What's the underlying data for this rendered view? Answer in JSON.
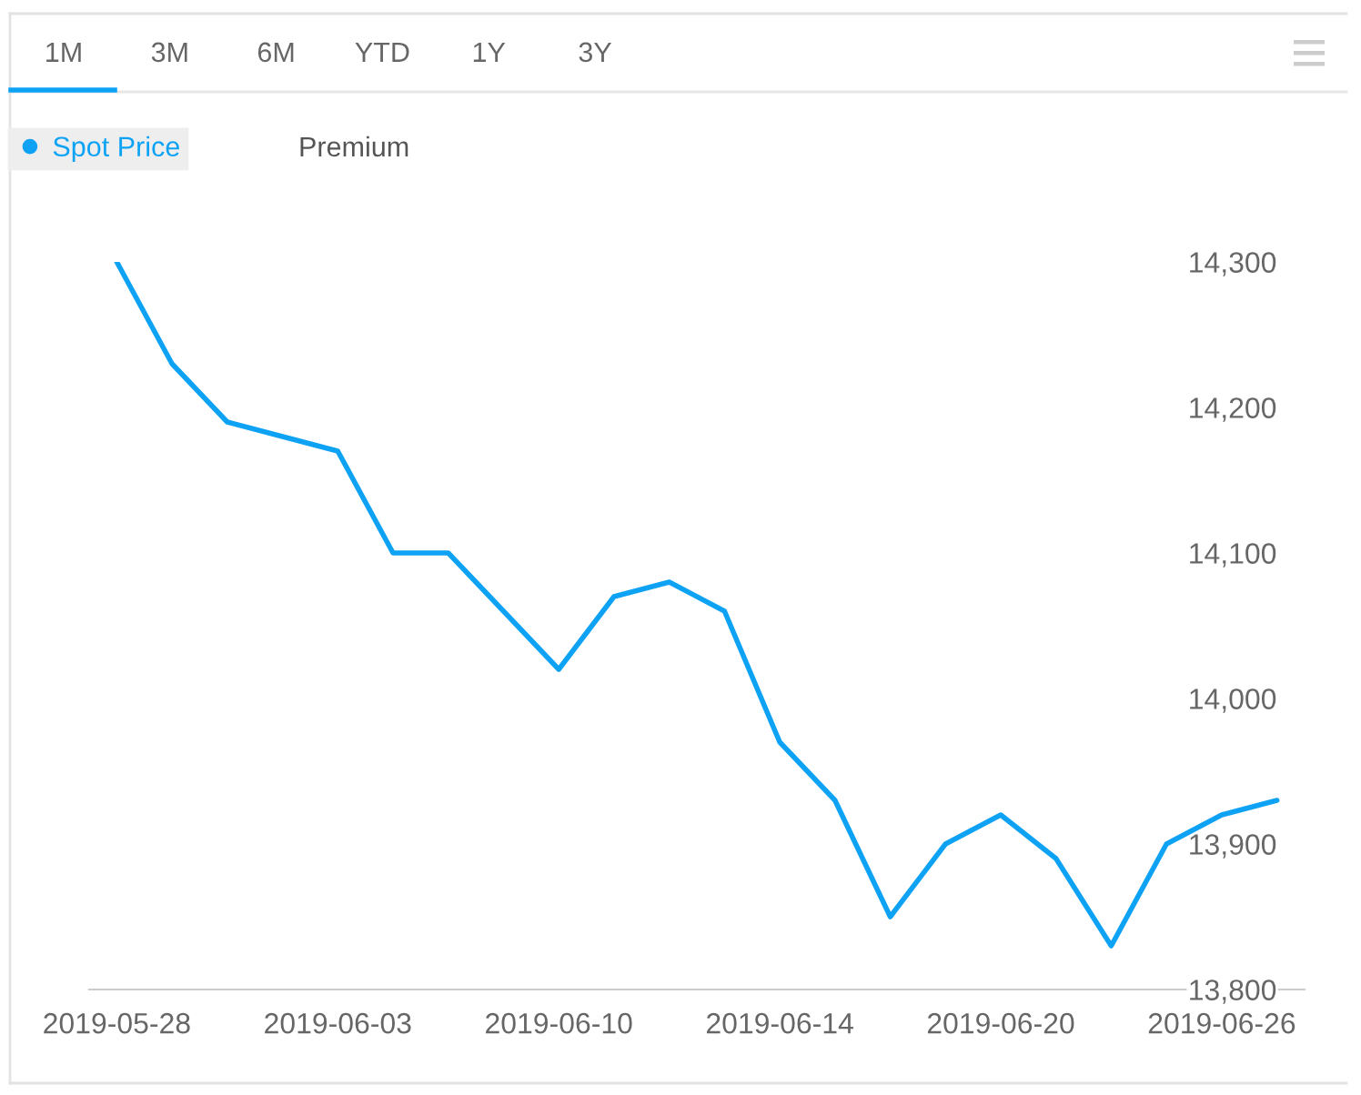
{
  "chart_data": {
    "type": "line",
    "categories": [
      "2019-05-28",
      null,
      null,
      null,
      "2019-06-03",
      null,
      null,
      null,
      "2019-06-10",
      null,
      null,
      null,
      "2019-06-14",
      null,
      null,
      null,
      "2019-06-20",
      null,
      null,
      null,
      "2019-06-26",
      null
    ],
    "series": [
      {
        "name": "Spot Price",
        "color": "#0ea2f5",
        "values": [
          14300,
          14230,
          14190,
          14180,
          14170,
          14100,
          14100,
          14060,
          14020,
          14070,
          14080,
          14060,
          13970,
          13930,
          13850,
          13900,
          13920,
          13890,
          13830,
          13900,
          13920,
          13930
        ]
      }
    ],
    "ylim": [
      13800,
      14300
    ],
    "yticks": [
      {
        "value": 13800,
        "label": "13,800"
      },
      {
        "value": 13900,
        "label": "13,900"
      },
      {
        "value": 14000,
        "label": "14,000"
      },
      {
        "value": 14100,
        "label": "14,100"
      },
      {
        "value": 14200,
        "label": "14,200"
      },
      {
        "value": 14300,
        "label": "14,300"
      }
    ],
    "legend": "top left",
    "line_style": "solid",
    "annotations": [
      "1M",
      "3M",
      "6M",
      "YTD",
      "1Y",
      "3Y",
      "Premium"
    ]
  }
}
